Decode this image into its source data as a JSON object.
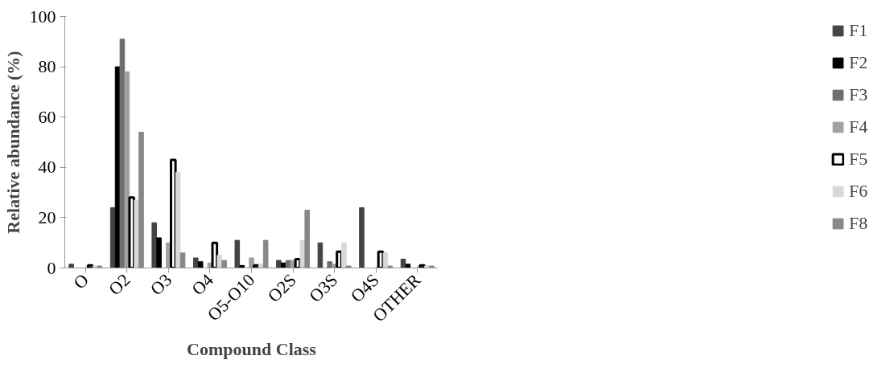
{
  "chart_data": {
    "type": "bar",
    "xlabel": "Compound Class",
    "ylabel": "Relative abundance (%)",
    "categories": [
      "O",
      "O2",
      "O3",
      "O4",
      "O5-O10",
      "O2S",
      "O3S",
      "O4S",
      "OTHER"
    ],
    "series": [
      {
        "name": "F1",
        "color": "#444444",
        "values": [
          1.5,
          24,
          18,
          4,
          11,
          3,
          10,
          24,
          3.5
        ]
      },
      {
        "name": "F2",
        "color": "#000000",
        "values": [
          null,
          80,
          12,
          2.5,
          1,
          2,
          null,
          null,
          1.5
        ]
      },
      {
        "name": "F3",
        "color": "#6e6e6e",
        "values": [
          null,
          91,
          null,
          null,
          null,
          3,
          2.5,
          null,
          null
        ]
      },
      {
        "name": "F4",
        "color": "#a0a0a0",
        "values": [
          null,
          78,
          10,
          2,
          4,
          3,
          1.5,
          null,
          null
        ]
      },
      {
        "name": "F5",
        "color": "#ffffff",
        "values": [
          1,
          28,
          43,
          10,
          1,
          3.5,
          6.5,
          6.5,
          1
        ]
      },
      {
        "name": "F6",
        "color": "#d8d8d8",
        "values": [
          0.8,
          27,
          38,
          5,
          1.5,
          11,
          10,
          6,
          0.8
        ]
      },
      {
        "name": "F8",
        "color": "#888888",
        "values": [
          0.8,
          54,
          6,
          3,
          11,
          23,
          0.8,
          0.8,
          0.8
        ]
      }
    ],
    "ylim": [
      0,
      100
    ],
    "yticks": [
      0,
      20,
      40,
      60,
      80,
      100
    ],
    "grid": false,
    "legend": "right"
  }
}
